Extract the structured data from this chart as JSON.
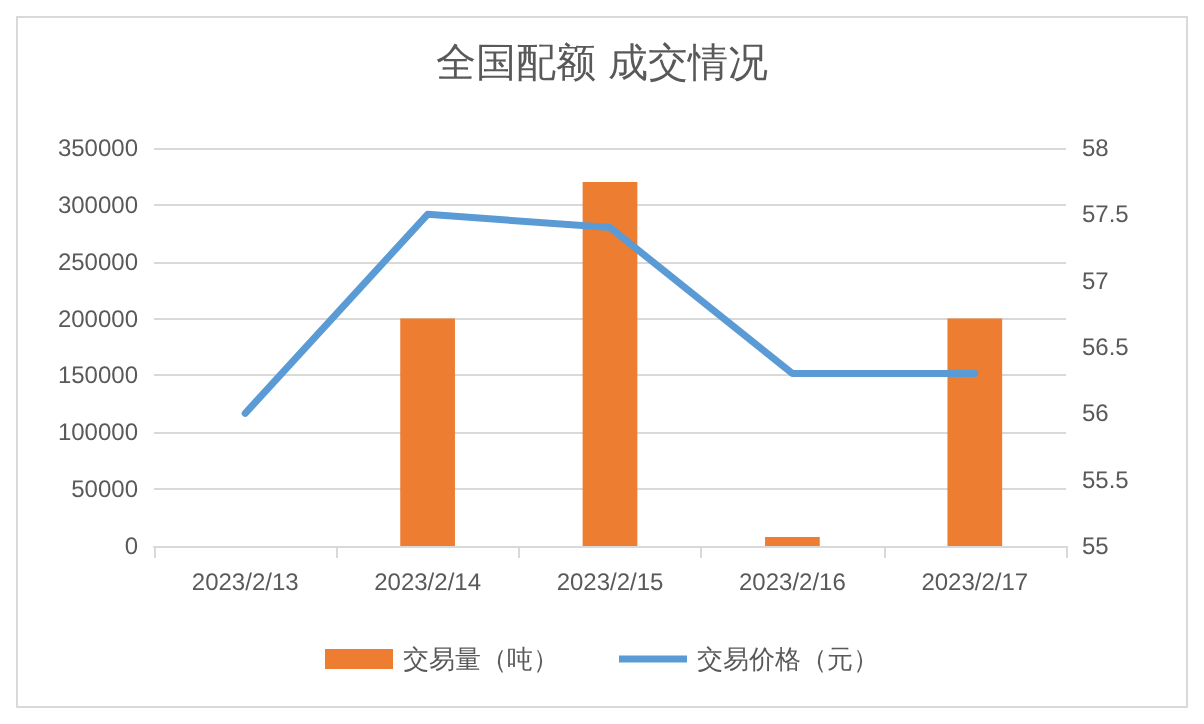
{
  "chart_data": {
    "type": "bar",
    "title": "全国配额 成交情况",
    "categories": [
      "2023/2/13",
      "2023/2/14",
      "2023/2/15",
      "2023/2/16",
      "2023/2/17"
    ],
    "series": [
      {
        "name": "交易量（吨）",
        "color": "#ed7d31",
        "values": [
          0,
          200000,
          320000,
          8000,
          200000
        ]
      },
      {
        "name": "交易价格（元）",
        "type": "line",
        "axis": "y2",
        "color": "#5b9bd5",
        "values": [
          56.0,
          57.5,
          57.4,
          56.3,
          56.3
        ]
      }
    ],
    "ylim": [
      0,
      350000
    ],
    "yticks": [
      0,
      50000,
      100000,
      150000,
      200000,
      250000,
      300000,
      350000
    ],
    "y2lim": [
      55,
      58
    ],
    "y2ticks": [
      55,
      55.5,
      56,
      56.5,
      57,
      57.5,
      58
    ],
    "grid": "y",
    "legend": "bottom",
    "marker": "none",
    "line_style": "solid"
  }
}
